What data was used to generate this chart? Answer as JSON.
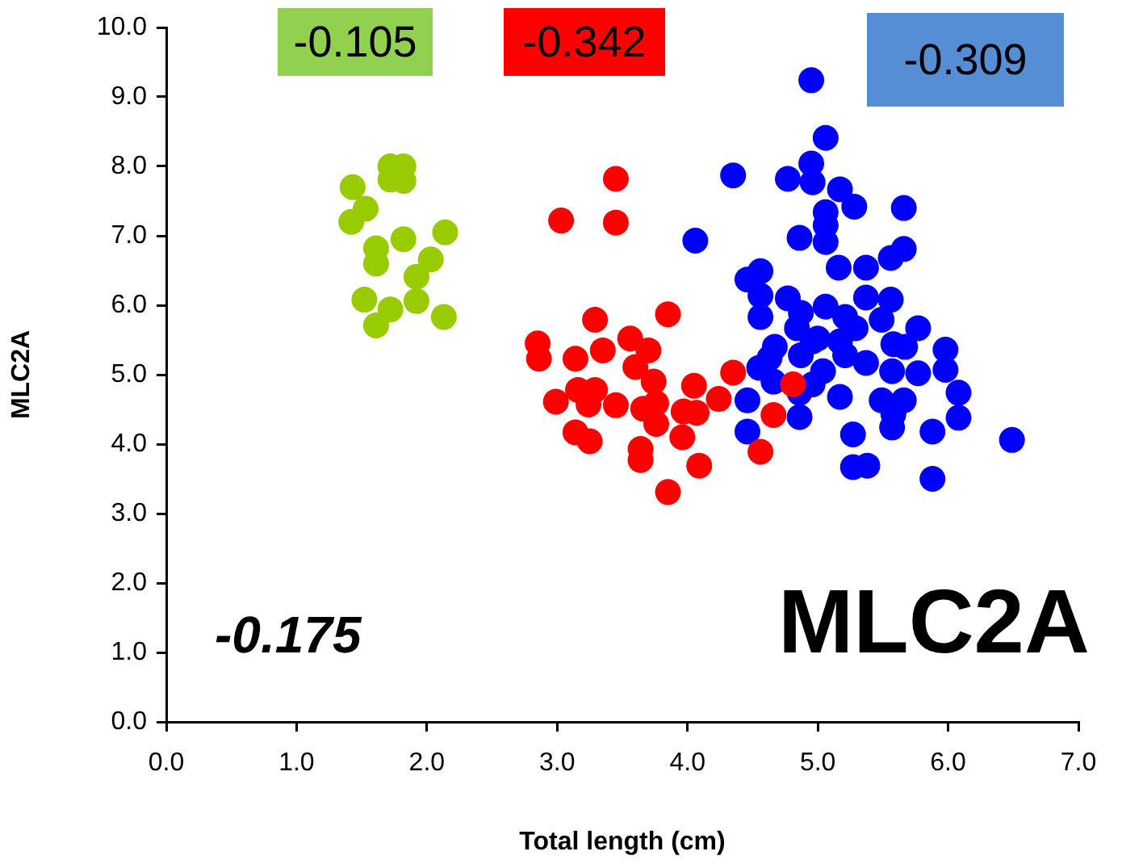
{
  "chart_data": {
    "type": "scatter",
    "xlabel": "Total length (cm)",
    "ylabel": "MLC2A",
    "xlim": [
      0,
      7
    ],
    "xticks": [
      {
        "value": 0,
        "label": "0.0"
      },
      {
        "value": 1,
        "label": "1.0"
      },
      {
        "value": 2,
        "label": "2.0"
      },
      {
        "value": 3,
        "label": "3.0"
      },
      {
        "value": 4,
        "label": "4.0"
      },
      {
        "value": 5,
        "label": "5.0"
      },
      {
        "value": 6,
        "label": "6.0"
      },
      {
        "value": 7,
        "label": "7.0"
      }
    ],
    "ylim": [
      0,
      10
    ],
    "yticks": [
      {
        "value": 0,
        "label": "0.0"
      },
      {
        "value": 1,
        "label": "1.0"
      },
      {
        "value": 2,
        "label": "2.0"
      },
      {
        "value": 3,
        "label": "3.0"
      },
      {
        "value": 4,
        "label": "4.0"
      },
      {
        "value": 5,
        "label": "5.0"
      },
      {
        "value": 6,
        "label": "6.0"
      },
      {
        "value": 7,
        "label": "7.0"
      },
      {
        "value": 8,
        "label": "8.0"
      },
      {
        "value": 9,
        "label": "9.0"
      },
      {
        "value": 10,
        "label": "10.0"
      }
    ],
    "grid": false,
    "legend": false,
    "marker": "circle",
    "annotations": [
      "-0.105",
      "-0.342",
      "-0.309",
      "-0.175",
      "MLC2A"
    ],
    "series": [
      {
        "color": "#99cc00",
        "x": [
          1.72,
          1.82,
          1.72,
          1.82,
          1.43,
          1.53,
          1.42,
          2.14,
          1.82,
          1.61,
          1.61,
          2.03,
          1.92,
          1.52,
          1.72,
          1.92,
          1.61,
          2.13
        ],
        "values": [
          8.0,
          8.0,
          7.81,
          7.79,
          7.7,
          7.39,
          7.2,
          7.05,
          6.95,
          6.82,
          6.6,
          6.66,
          6.41,
          6.08,
          5.94,
          6.06,
          5.71,
          5.83
        ]
      },
      {
        "color": "#ff0000",
        "x": [
          3.45,
          3.03,
          3.45,
          3.85,
          3.29,
          2.85,
          2.86,
          3.14,
          3.35,
          3.56,
          3.7,
          3.6,
          3.74,
          4.05,
          4.35,
          2.99,
          3.16,
          3.29,
          3.24,
          3.45,
          3.66,
          3.76,
          3.76,
          3.97,
          4.07,
          4.24,
          4.66,
          3.14,
          3.25,
          3.96,
          3.64,
          3.64,
          4.09,
          4.56,
          3.85,
          4.81
        ],
        "values": [
          7.82,
          7.22,
          7.19,
          5.87,
          5.79,
          5.45,
          5.23,
          5.23,
          5.35,
          5.52,
          5.35,
          5.11,
          4.9,
          4.84,
          5.03,
          4.61,
          4.78,
          4.78,
          4.57,
          4.56,
          4.51,
          4.59,
          4.29,
          4.47,
          4.45,
          4.65,
          4.42,
          4.17,
          4.04,
          4.1,
          3.93,
          3.77,
          3.69,
          3.89,
          3.31,
          4.86
        ]
      },
      {
        "color": "#0000ff",
        "x": [
          4.95,
          5.06,
          4.35,
          4.77,
          4.95,
          4.96,
          5.17,
          5.28,
          5.66,
          5.06,
          5.06,
          4.86,
          5.06,
          4.06,
          5.66,
          5.56,
          5.16,
          5.37,
          4.56,
          4.46,
          4.56,
          4.77,
          4.56,
          5.37,
          5.56,
          5.06,
          4.87,
          5.49,
          5.21,
          5.29,
          5.77,
          4.84,
          5.0,
          5.17,
          4.67,
          4.96,
          5.58,
          5.98,
          5.67,
          4.63,
          4.87,
          5.21,
          5.37,
          4.55,
          5.98,
          5.77,
          5.04,
          5.57,
          4.66,
          4.96,
          4.86,
          4.46,
          5.17,
          5.49,
          5.66,
          6.08,
          4.86,
          5.58,
          6.08,
          5.57,
          4.46,
          5.27,
          5.88,
          6.49,
          5.27,
          5.38,
          5.88
        ],
        "values": [
          9.24,
          8.41,
          7.87,
          7.82,
          8.04,
          7.77,
          7.67,
          7.42,
          7.4,
          7.34,
          7.15,
          6.97,
          6.91,
          6.93,
          6.81,
          6.68,
          6.54,
          6.54,
          6.49,
          6.37,
          6.14,
          6.1,
          5.83,
          6.11,
          6.08,
          5.98,
          5.89,
          5.79,
          5.83,
          5.67,
          5.67,
          5.67,
          5.52,
          5.48,
          5.4,
          5.48,
          5.44,
          5.36,
          5.4,
          5.24,
          5.28,
          5.28,
          5.17,
          5.1,
          5.07,
          5.02,
          5.05,
          5.05,
          4.9,
          4.86,
          4.74,
          4.63,
          4.68,
          4.63,
          4.63,
          4.74,
          4.39,
          4.43,
          4.38,
          4.24,
          4.18,
          4.14,
          4.18,
          4.06,
          3.67,
          3.69,
          3.5
        ]
      }
    ]
  }
}
